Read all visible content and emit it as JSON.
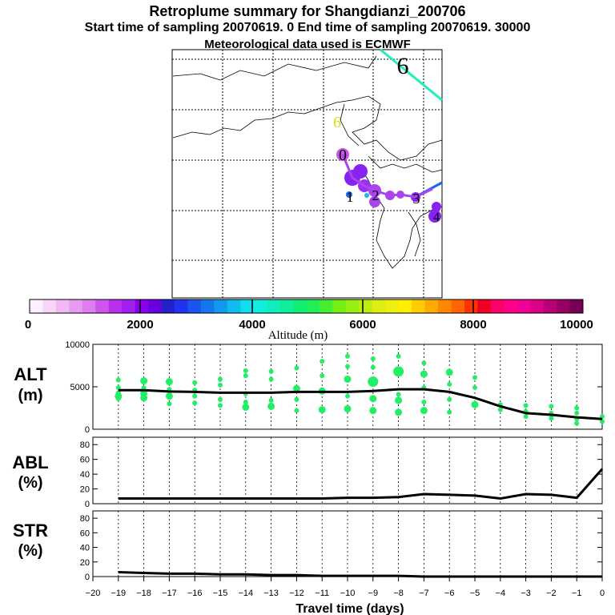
{
  "header": {
    "title": "Retroplume summary for Shangdianzi_200706",
    "subtitle": "Start time of sampling 20070619.    0     End time of sampling 20070619. 30000",
    "meteo": "Meteorological data used is ECMWF"
  },
  "colors": {
    "dot_green": "#22ee66",
    "line_black": "#000000",
    "trajectory_teal": "#22eebb",
    "trajectory_blue": "#1a66ee",
    "plume_purple": "#8822ee"
  },
  "map": {
    "labels": [
      "6",
      "6",
      "0",
      "1",
      "2",
      "3",
      "4"
    ],
    "map_labels_note": "day markers along retroplume"
  },
  "colorbar": {
    "ticks": [
      "0",
      "2000",
      "4000",
      "6000",
      "8000",
      "10000"
    ],
    "label": "Altitude (m)",
    "colors": [
      "#ffeeff",
      "#f8d4f8",
      "#f0b8f4",
      "#e89cf0",
      "#dd7eec",
      "#cc55ee",
      "#b830ee",
      "#a020f0",
      "#8800ee",
      "#6a00dd",
      "#2222cc",
      "#2233ee",
      "#1a55ee",
      "#1477ee",
      "#1199ee",
      "#11bbee",
      "#11ddee",
      "#11eedd",
      "#11eebb",
      "#11ee99",
      "#11ee77",
      "#22ee55",
      "#44ee33",
      "#77ee11",
      "#99ee11",
      "#bbee11",
      "#ddee11",
      "#eeee11",
      "#ffee00",
      "#ffcc00",
      "#ffaa00",
      "#ff8800",
      "#ff6600",
      "#ff3300",
      "#ee0022",
      "#ff0066",
      "#ff0088",
      "#ee0099",
      "#dd0088",
      "#bb0077",
      "#990066",
      "#770055"
    ]
  },
  "chart_data": [
    {
      "type": "scatter",
      "panel": "ALT",
      "ylabel": "ALT",
      "yunit": "(m)",
      "ylim": [
        0,
        10000
      ],
      "yticks": [
        "0",
        "5000",
        "10000"
      ],
      "mean_line": {
        "x": [
          -19,
          -18,
          -17,
          -16,
          -15,
          -14,
          -13,
          -12,
          -11,
          -10,
          -9,
          -8,
          -7,
          -6,
          -5,
          -4,
          -3,
          -2,
          -1,
          0
        ],
        "y": [
          4600,
          4600,
          4450,
          4400,
          4300,
          4300,
          4300,
          4400,
          4400,
          4400,
          4500,
          4700,
          4700,
          4400,
          3700,
          2700,
          1900,
          1700,
          1400,
          1200
        ]
      },
      "points": [
        {
          "x": -19,
          "y": 5800,
          "s": 1
        },
        {
          "x": -19,
          "y": 4900,
          "s": 1
        },
        {
          "x": -19,
          "y": 4300,
          "s": 1
        },
        {
          "x": -19,
          "y": 3900,
          "s": 2
        },
        {
          "x": -19,
          "y": 3600,
          "s": 1
        },
        {
          "x": -18,
          "y": 5700,
          "s": 2
        },
        {
          "x": -18,
          "y": 4900,
          "s": 1
        },
        {
          "x": -18,
          "y": 4200,
          "s": 2
        },
        {
          "x": -18,
          "y": 3700,
          "s": 2
        },
        {
          "x": -17,
          "y": 5600,
          "s": 2
        },
        {
          "x": -17,
          "y": 4700,
          "s": 1
        },
        {
          "x": -17,
          "y": 3900,
          "s": 2
        },
        {
          "x": -17,
          "y": 3000,
          "s": 1
        },
        {
          "x": -16,
          "y": 5500,
          "s": 1
        },
        {
          "x": -16,
          "y": 4600,
          "s": 1
        },
        {
          "x": -16,
          "y": 3900,
          "s": 1
        },
        {
          "x": -16,
          "y": 3100,
          "s": 1
        },
        {
          "x": -15,
          "y": 5900,
          "s": 1
        },
        {
          "x": -15,
          "y": 5200,
          "s": 1
        },
        {
          "x": -15,
          "y": 3500,
          "s": 1
        },
        {
          "x": -15,
          "y": 2800,
          "s": 1
        },
        {
          "x": -14,
          "y": 6900,
          "s": 1
        },
        {
          "x": -14,
          "y": 6300,
          "s": 1
        },
        {
          "x": -14,
          "y": 4200,
          "s": 1
        },
        {
          "x": -14,
          "y": 3200,
          "s": 1
        },
        {
          "x": -14,
          "y": 2600,
          "s": 2
        },
        {
          "x": -13,
          "y": 6800,
          "s": 1
        },
        {
          "x": -13,
          "y": 5900,
          "s": 1
        },
        {
          "x": -13,
          "y": 3400,
          "s": 1
        },
        {
          "x": -13,
          "y": 2700,
          "s": 2
        },
        {
          "x": -12,
          "y": 7200,
          "s": 1
        },
        {
          "x": -12,
          "y": 4800,
          "s": 2
        },
        {
          "x": -12,
          "y": 3500,
          "s": 1
        },
        {
          "x": -12,
          "y": 2200,
          "s": 1
        },
        {
          "x": -11,
          "y": 8000,
          "s": 1
        },
        {
          "x": -11,
          "y": 6300,
          "s": 1
        },
        {
          "x": -11,
          "y": 4500,
          "s": 2
        },
        {
          "x": -11,
          "y": 2300,
          "s": 2
        },
        {
          "x": -10,
          "y": 8600,
          "s": 1
        },
        {
          "x": -10,
          "y": 7400,
          "s": 1
        },
        {
          "x": -10,
          "y": 5900,
          "s": 2
        },
        {
          "x": -10,
          "y": 3900,
          "s": 1
        },
        {
          "x": -10,
          "y": 2400,
          "s": 2
        },
        {
          "x": -9,
          "y": 8300,
          "s": 1
        },
        {
          "x": -9,
          "y": 7300,
          "s": 1
        },
        {
          "x": -9,
          "y": 5600,
          "s": 3
        },
        {
          "x": -9,
          "y": 3600,
          "s": 2
        },
        {
          "x": -9,
          "y": 2200,
          "s": 2
        },
        {
          "x": -8,
          "y": 8600,
          "s": 1
        },
        {
          "x": -8,
          "y": 6800,
          "s": 3
        },
        {
          "x": -8,
          "y": 4100,
          "s": 1
        },
        {
          "x": -8,
          "y": 3400,
          "s": 2
        },
        {
          "x": -8,
          "y": 2000,
          "s": 2
        },
        {
          "x": -7,
          "y": 7800,
          "s": 1
        },
        {
          "x": -7,
          "y": 6500,
          "s": 2
        },
        {
          "x": -7,
          "y": 4900,
          "s": 1
        },
        {
          "x": -7,
          "y": 3200,
          "s": 1
        },
        {
          "x": -7,
          "y": 2200,
          "s": 2
        },
        {
          "x": -6,
          "y": 6700,
          "s": 2
        },
        {
          "x": -6,
          "y": 5300,
          "s": 1
        },
        {
          "x": -6,
          "y": 3500,
          "s": 1
        },
        {
          "x": -6,
          "y": 2000,
          "s": 1
        },
        {
          "x": -5,
          "y": 6100,
          "s": 1
        },
        {
          "x": -5,
          "y": 4900,
          "s": 1
        },
        {
          "x": -5,
          "y": 2900,
          "s": 2
        },
        {
          "x": -4,
          "y": 2900,
          "s": 1
        },
        {
          "x": -4,
          "y": 2300,
          "s": 1
        },
        {
          "x": -3,
          "y": 2800,
          "s": 1
        },
        {
          "x": -3,
          "y": 2100,
          "s": 1
        },
        {
          "x": -3,
          "y": 1500,
          "s": 1
        },
        {
          "x": -2,
          "y": 2700,
          "s": 1
        },
        {
          "x": -2,
          "y": 1900,
          "s": 1
        },
        {
          "x": -2,
          "y": 1300,
          "s": 1
        },
        {
          "x": -1,
          "y": 2500,
          "s": 1
        },
        {
          "x": -1,
          "y": 1900,
          "s": 1
        },
        {
          "x": -1,
          "y": 1200,
          "s": 1
        },
        {
          "x": -1,
          "y": 700,
          "s": 1
        },
        {
          "x": 0,
          "y": 1500,
          "s": 1
        },
        {
          "x": 0,
          "y": 900,
          "s": 1
        }
      ]
    },
    {
      "type": "line",
      "panel": "ABL",
      "ylabel": "ABL",
      "yunit": "(%)",
      "ylim": [
        0,
        90
      ],
      "yticks": [
        "0",
        "20",
        "40",
        "60",
        "80"
      ],
      "x": [
        -19,
        -18,
        -17,
        -16,
        -15,
        -14,
        -13,
        -12,
        -11,
        -10,
        -9,
        -8,
        -7,
        -6,
        -5,
        -4,
        -3,
        -2,
        -1,
        0
      ],
      "y": [
        7,
        7,
        7,
        7,
        7,
        7,
        7,
        7,
        7,
        8,
        8,
        9,
        13,
        12,
        11,
        7,
        13,
        12,
        8,
        47
      ]
    },
    {
      "type": "line",
      "panel": "STR",
      "ylabel": "STR",
      "yunit": "(%)",
      "ylim": [
        0,
        90
      ],
      "yticks": [
        "0",
        "20",
        "40",
        "60",
        "80"
      ],
      "x": [
        -19,
        -18,
        -17,
        -16,
        -15,
        -14,
        -13,
        -12,
        -11,
        -10,
        -9,
        -8,
        -7,
        -6,
        -5,
        -4,
        -3,
        -2,
        -1,
        0
      ],
      "y": [
        6,
        5,
        4,
        4,
        3,
        3,
        2,
        2,
        1,
        1,
        1,
        1,
        0,
        0,
        0,
        0,
        0,
        0,
        0,
        0
      ]
    }
  ],
  "xaxis": {
    "label": "Travel time (days)",
    "ticks": [
      "−20",
      "−19",
      "−18",
      "−17",
      "−16",
      "−15",
      "−14",
      "−13",
      "−12",
      "−11",
      "−10",
      "−9",
      "−8",
      "−7",
      "−6",
      "−5",
      "−4",
      "−3",
      "−2",
      "−1",
      "0"
    ],
    "xlim": [
      -20,
      0
    ]
  }
}
